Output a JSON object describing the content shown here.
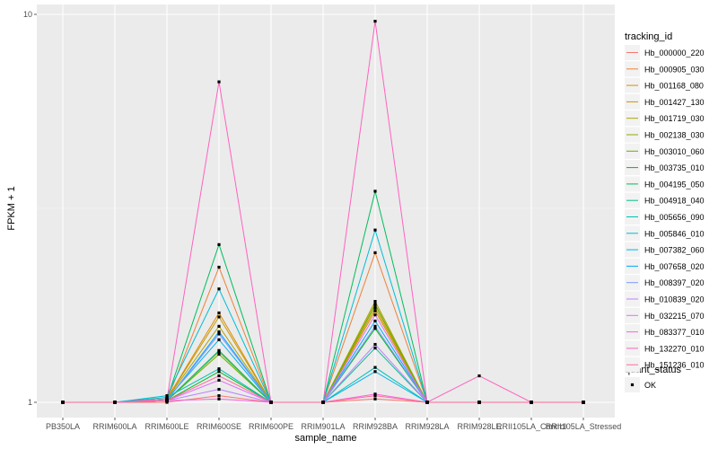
{
  "chart_data": {
    "type": "line",
    "xlabel": "sample_name",
    "ylabel": "FPKM + 1",
    "y_scale": "log10",
    "ylim": [
      1,
      10
    ],
    "y_ticks": [
      {
        "value": 1,
        "label": "1"
      },
      {
        "value": 10,
        "label": "10"
      }
    ],
    "grid": true,
    "legend_position": "right",
    "categories": [
      "PB350LA",
      "RRIM600LA",
      "RRIM600LE",
      "RRIM600SE",
      "RRIM600PE",
      "RRIM901LA",
      "RRIM928BA",
      "RRIM928LA",
      "RRIM928LE",
      "RRII105LA_Control",
      "RRII105LA_Stressed"
    ],
    "series_legend_title": "tracking_id",
    "series": [
      {
        "name": "Hb_000000_220",
        "color": "#F8766D",
        "values": [
          1,
          1,
          1.0,
          1.04,
          1,
          1,
          1.02,
          1,
          1,
          1,
          1
        ]
      },
      {
        "name": "Hb_000905_030",
        "color": "#EC8239",
        "values": [
          1,
          1,
          1.01,
          2.23,
          1,
          1,
          2.43,
          1,
          1,
          1,
          1
        ]
      },
      {
        "name": "Hb_001168_080",
        "color": "#DB8E00",
        "values": [
          1,
          1,
          1.02,
          1.7,
          1,
          1,
          1.75,
          1,
          1,
          1,
          1
        ]
      },
      {
        "name": "Hb_001427_130",
        "color": "#C79800",
        "values": [
          1,
          1,
          1.02,
          1.66,
          1,
          1,
          1.72,
          1,
          1,
          1,
          1
        ]
      },
      {
        "name": "Hb_001719_030",
        "color": "#AEA200",
        "values": [
          1,
          1,
          1.02,
          1.57,
          1,
          1,
          1.82,
          1,
          1,
          1,
          1
        ]
      },
      {
        "name": "Hb_002138_030",
        "color": "#8FAA00",
        "values": [
          1,
          1,
          1.01,
          1.35,
          1,
          1,
          1.79,
          1,
          1,
          1,
          1
        ]
      },
      {
        "name": "Hb_003010_060",
        "color": "#64B200",
        "values": [
          1,
          1,
          1.01,
          1.33,
          1,
          1,
          1.78,
          1,
          1,
          1,
          1
        ]
      },
      {
        "name": "Hb_003735_010",
        "color": "#00B81B",
        "values": [
          1,
          1,
          1.01,
          1.2,
          1,
          1,
          1.55,
          1,
          1,
          1,
          1
        ]
      },
      {
        "name": "Hb_004195_050",
        "color": "#00BD5C",
        "values": [
          1,
          1,
          1.02,
          2.55,
          1,
          1,
          3.5,
          1,
          1,
          1,
          1
        ]
      },
      {
        "name": "Hb_004918_040",
        "color": "#00C08E",
        "values": [
          1,
          1,
          1.01,
          1.36,
          1,
          1,
          1.38,
          1,
          1,
          1,
          1
        ]
      },
      {
        "name": "Hb_005656_090",
        "color": "#00C1B7",
        "values": [
          1,
          1,
          1.03,
          1.22,
          1,
          1,
          1.23,
          1,
          1,
          1,
          1
        ]
      },
      {
        "name": "Hb_005846_010",
        "color": "#00BDD4",
        "values": [
          1,
          1,
          1.04,
          1.96,
          1,
          1,
          2.78,
          1,
          1,
          1,
          1
        ]
      },
      {
        "name": "Hb_007382_060",
        "color": "#00B5EE",
        "values": [
          1,
          1,
          1.02,
          1.45,
          1,
          1,
          1.2,
          1,
          1,
          1,
          1
        ]
      },
      {
        "name": "Hb_007658_020",
        "color": "#00A7FF",
        "values": [
          1,
          1,
          1.01,
          1.52,
          1,
          1,
          1.62,
          1,
          1,
          1,
          1
        ]
      },
      {
        "name": "Hb_008397_020",
        "color": "#7F96FF",
        "values": [
          1,
          1,
          1.01,
          1.5,
          1,
          1,
          1.57,
          1,
          1,
          1,
          1
        ]
      },
      {
        "name": "Hb_010839_020",
        "color": "#BC81FF",
        "values": [
          1,
          1,
          1.01,
          1.08,
          1,
          1,
          1.41,
          1,
          1,
          1,
          1
        ]
      },
      {
        "name": "Hb_032215_070",
        "color": "#E26EF7",
        "values": [
          1,
          1,
          1.01,
          1.14,
          1,
          1,
          1.68,
          1,
          1,
          1,
          1
        ]
      },
      {
        "name": "Hb_083377_010",
        "color": "#F863DF",
        "values": [
          1,
          1,
          1.01,
          1.02,
          1,
          1,
          1.05,
          1,
          1,
          1,
          1
        ]
      },
      {
        "name": "Hb_132270_010",
        "color": "#FF62BF",
        "values": [
          1,
          1,
          1.02,
          6.7,
          1,
          1,
          9.6,
          1,
          1.17,
          1,
          1
        ]
      },
      {
        "name": "Hb_151236_010",
        "color": "#FF6A98",
        "values": [
          1,
          1,
          1.01,
          1.17,
          1,
          1,
          1.04,
          1,
          1,
          1,
          1
        ]
      }
    ],
    "shape_legend": {
      "title": "quant_status",
      "items": [
        {
          "label": "OK",
          "symbol": "square",
          "color": "#000000"
        }
      ]
    }
  }
}
